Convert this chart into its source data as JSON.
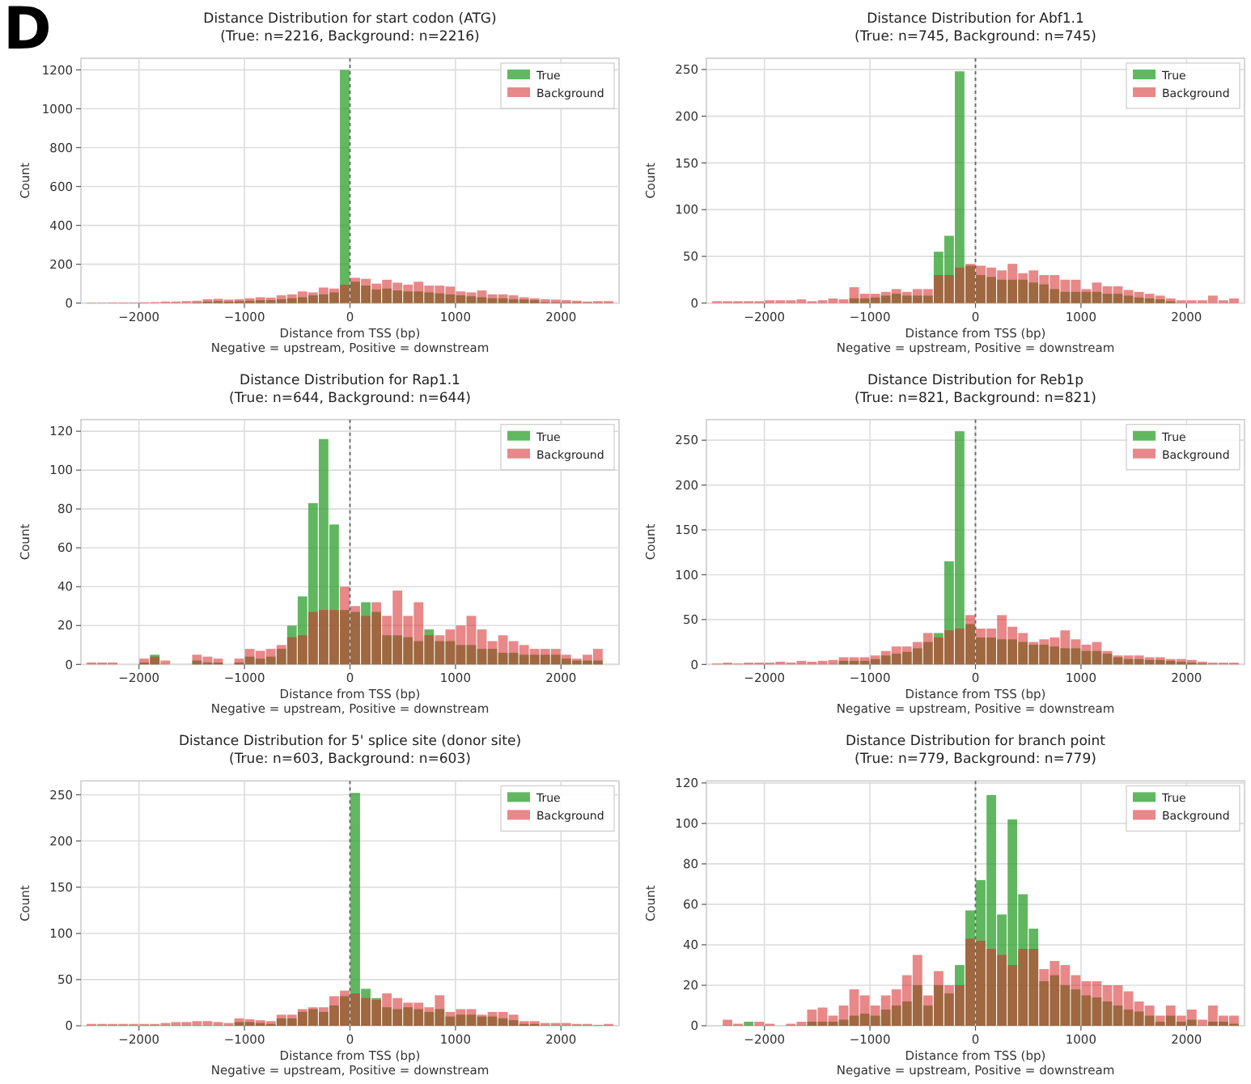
{
  "chart_data": [
    {
      "type": "histogram",
      "title": "Distance Distribution for start codon (ATG)",
      "subtitle": "(True: n=2216, Background: n=2216)",
      "xlabel": "Distance from TSS (bp)\nNegative = upstream, Positive = downstream",
      "ylabel": "Count",
      "annotations": [
        "D"
      ],
      "bins": [
        -2500,
        -2400,
        -2300,
        -2200,
        -2100,
        -2000,
        -1900,
        -1800,
        -1700,
        -1600,
        -1500,
        -1400,
        -1300,
        -1200,
        -1100,
        -1000,
        -900,
        -800,
        -700,
        -600,
        -500,
        -400,
        -300,
        -200,
        -100,
        0,
        100,
        200,
        300,
        400,
        500,
        600,
        700,
        800,
        900,
        1000,
        1100,
        1200,
        1300,
        1400,
        1500,
        1600,
        1700,
        1800,
        1900,
        2000,
        2100,
        2200,
        2300,
        2400,
        2500
      ],
      "series": [
        {
          "name": "True",
          "color": "#2ca02c",
          "values": [
            0,
            0,
            0,
            0,
            0,
            0,
            0,
            0,
            0,
            0,
            2,
            8,
            10,
            8,
            10,
            12,
            15,
            15,
            20,
            25,
            30,
            40,
            45,
            55,
            1200,
            110,
            90,
            70,
            75,
            65,
            60,
            60,
            55,
            50,
            45,
            40,
            35,
            30,
            25,
            25,
            20,
            18,
            15,
            4,
            3,
            2,
            2,
            1,
            1,
            1
          ]
        },
        {
          "name": "Background",
          "color": "#d62728",
          "values": [
            2,
            2,
            3,
            3,
            3,
            4,
            5,
            8,
            8,
            10,
            12,
            20,
            22,
            18,
            20,
            25,
            30,
            28,
            40,
            45,
            60,
            55,
            80,
            75,
            95,
            130,
            125,
            100,
            120,
            105,
            95,
            110,
            90,
            90,
            85,
            60,
            55,
            65,
            45,
            45,
            40,
            30,
            25,
            20,
            18,
            15,
            12,
            8,
            10,
            10
          ]
        }
      ],
      "xlim": [
        -2550,
        2550
      ],
      "xticks": [
        -2000,
        -1000,
        0,
        1000,
        2000
      ],
      "ylim": [
        0,
        1260
      ],
      "yticks": [
        0,
        200,
        400,
        600,
        800,
        1000,
        1200
      ],
      "grid": true,
      "legend": "top right",
      "ref_lines": [
        {
          "axis": "x",
          "value": 0,
          "color": "#666666",
          "line_style": "dotted"
        }
      ]
    },
    {
      "type": "histogram",
      "title": "Distance Distribution for Abf1.1",
      "subtitle": "(True: n=745, Background: n=745)",
      "xlabel": "Distance from TSS (bp)\nNegative = upstream, Positive = downstream",
      "ylabel": "Count",
      "bins": [
        -2500,
        -2400,
        -2300,
        -2200,
        -2100,
        -2000,
        -1900,
        -1800,
        -1700,
        -1600,
        -1500,
        -1400,
        -1300,
        -1200,
        -1100,
        -1000,
        -900,
        -800,
        -700,
        -600,
        -500,
        -400,
        -300,
        -200,
        -100,
        0,
        100,
        200,
        300,
        400,
        500,
        600,
        700,
        800,
        900,
        1000,
        1100,
        1200,
        1300,
        1400,
        1500,
        1600,
        1700,
        1800,
        1900,
        2000,
        2100,
        2200,
        2300,
        2400,
        2500
      ],
      "series": [
        {
          "name": "True",
          "color": "#2ca02c",
          "values": [
            0,
            0,
            0,
            0,
            0,
            0,
            0,
            0,
            0,
            0,
            0,
            0,
            0,
            5,
            5,
            6,
            8,
            10,
            8,
            8,
            8,
            55,
            72,
            248,
            40,
            30,
            28,
            25,
            25,
            25,
            22,
            20,
            15,
            12,
            12,
            12,
            12,
            10,
            10,
            8,
            6,
            5,
            4,
            2,
            0,
            0,
            0,
            0,
            0,
            0
          ]
        },
        {
          "name": "Background",
          "color": "#d62728",
          "values": [
            2,
            2,
            2,
            2,
            2,
            3,
            3,
            3,
            4,
            2,
            3,
            5,
            4,
            17,
            10,
            10,
            12,
            15,
            12,
            15,
            15,
            30,
            30,
            38,
            42,
            40,
            38,
            35,
            42,
            32,
            35,
            30,
            30,
            25,
            25,
            15,
            22,
            18,
            18,
            14,
            12,
            10,
            8,
            5,
            3,
            3,
            3,
            8,
            3,
            5
          ]
        }
      ],
      "xlim": [
        -2550,
        2550
      ],
      "xticks": [
        -2000,
        -1000,
        0,
        1000,
        2000
      ],
      "ylim": [
        0,
        262
      ],
      "yticks": [
        0,
        50,
        100,
        150,
        200,
        250
      ],
      "grid": true,
      "legend": "top right",
      "ref_lines": [
        {
          "axis": "x",
          "value": 0,
          "color": "#666666",
          "line_style": "dotted"
        }
      ]
    },
    {
      "type": "histogram",
      "title": "Distance Distribution for Rap1.1",
      "subtitle": "(True: n=644, Background: n=644)",
      "xlabel": "Distance from TSS (bp)\nNegative = upstream, Positive = downstream",
      "ylabel": "Count",
      "bins": [
        -2500,
        -2400,
        -2300,
        -2200,
        -2100,
        -2000,
        -1900,
        -1800,
        -1700,
        -1600,
        -1500,
        -1400,
        -1300,
        -1200,
        -1100,
        -1000,
        -900,
        -800,
        -700,
        -600,
        -500,
        -400,
        -300,
        -200,
        -100,
        0,
        100,
        200,
        300,
        400,
        500,
        600,
        700,
        800,
        900,
        1000,
        1100,
        1200,
        1300,
        1400,
        1500,
        1600,
        1700,
        1800,
        1900,
        2000,
        2100,
        2200,
        2300,
        2400,
        2500
      ],
      "series": [
        {
          "name": "True",
          "color": "#2ca02c",
          "values": [
            0,
            0,
            0,
            0,
            0,
            1,
            5,
            0,
            0,
            0,
            2,
            1,
            1,
            0,
            1,
            4,
            3,
            4,
            8,
            20,
            35,
            83,
            116,
            72,
            28,
            27,
            32,
            27,
            15,
            15,
            14,
            12,
            18,
            12,
            12,
            10,
            10,
            8,
            8,
            6,
            6,
            5,
            5,
            5,
            5,
            3,
            2,
            2,
            2,
            0
          ]
        },
        {
          "name": "Background",
          "color": "#d62728",
          "values": [
            1,
            1,
            1,
            0,
            0,
            3,
            4,
            2,
            0,
            0,
            5,
            4,
            3,
            0,
            3,
            8,
            7,
            8,
            10,
            14,
            15,
            27,
            28,
            28,
            40,
            30,
            25,
            32,
            25,
            38,
            25,
            32,
            15,
            15,
            18,
            20,
            25,
            18,
            12,
            15,
            12,
            10,
            8,
            8,
            8,
            5,
            3,
            5,
            8,
            0
          ]
        }
      ],
      "xlim": [
        -2550,
        2550
      ],
      "xticks": [
        -2000,
        -1000,
        0,
        1000,
        2000
      ],
      "ylim": [
        0,
        126
      ],
      "yticks": [
        0,
        20,
        40,
        60,
        80,
        100,
        120
      ],
      "grid": true,
      "legend": "top right",
      "ref_lines": [
        {
          "axis": "x",
          "value": 0,
          "color": "#666666",
          "line_style": "dotted"
        }
      ]
    },
    {
      "type": "histogram",
      "title": "Distance Distribution for Reb1p",
      "subtitle": "(True: n=821, Background: n=821)",
      "xlabel": "Distance from TSS (bp)\nNegative = upstream, Positive = downstream",
      "ylabel": "Count",
      "bins": [
        -2500,
        -2400,
        -2300,
        -2200,
        -2100,
        -2000,
        -1900,
        -1800,
        -1700,
        -1600,
        -1500,
        -1400,
        -1300,
        -1200,
        -1100,
        -1000,
        -900,
        -800,
        -700,
        -600,
        -500,
        -400,
        -300,
        -200,
        -100,
        0,
        100,
        200,
        300,
        400,
        500,
        600,
        700,
        800,
        900,
        1000,
        1100,
        1200,
        1300,
        1400,
        1500,
        1600,
        1700,
        1800,
        1900,
        2000,
        2100,
        2200,
        2300,
        2400,
        2500
      ],
      "series": [
        {
          "name": "True",
          "color": "#2ca02c",
          "values": [
            0,
            0,
            0,
            0,
            0,
            0,
            0,
            0,
            0,
            0,
            0,
            0,
            4,
            4,
            4,
            6,
            10,
            12,
            14,
            18,
            25,
            35,
            115,
            260,
            45,
            30,
            30,
            28,
            28,
            25,
            22,
            22,
            20,
            18,
            18,
            15,
            15,
            12,
            8,
            6,
            6,
            5,
            5,
            4,
            3,
            2,
            1,
            0,
            0,
            0
          ]
        },
        {
          "name": "Background",
          "color": "#d62728",
          "values": [
            1,
            2,
            1,
            2,
            2,
            2,
            3,
            2,
            4,
            3,
            4,
            5,
            8,
            8,
            8,
            10,
            15,
            20,
            20,
            25,
            35,
            30,
            38,
            40,
            55,
            40,
            40,
            55,
            42,
            35,
            25,
            28,
            30,
            38,
            28,
            22,
            25,
            15,
            10,
            10,
            10,
            8,
            8,
            6,
            6,
            5,
            3,
            2,
            2,
            2
          ]
        }
      ],
      "xlim": [
        -2550,
        2550
      ],
      "xticks": [
        -2000,
        -1000,
        0,
        1000,
        2000
      ],
      "ylim": [
        0,
        273
      ],
      "yticks": [
        0,
        50,
        100,
        150,
        200,
        250
      ],
      "grid": true,
      "legend": "top right",
      "ref_lines": [
        {
          "axis": "x",
          "value": 0,
          "color": "#666666",
          "line_style": "dotted"
        }
      ]
    },
    {
      "type": "histogram",
      "title": "Distance Distribution for 5' splice site (donor site)",
      "subtitle": "(True: n=603, Background: n=603)",
      "xlabel": "Distance from TSS (bp)\nNegative = upstream, Positive = downstream",
      "ylabel": "Count",
      "bins": [
        -2500,
        -2400,
        -2300,
        -2200,
        -2100,
        -2000,
        -1900,
        -1800,
        -1700,
        -1600,
        -1500,
        -1400,
        -1300,
        -1200,
        -1100,
        -1000,
        -900,
        -800,
        -700,
        -600,
        -500,
        -400,
        -300,
        -200,
        -100,
        0,
        100,
        200,
        300,
        400,
        500,
        600,
        700,
        800,
        900,
        1000,
        1100,
        1200,
        1300,
        1400,
        1500,
        1600,
        1700,
        1800,
        1900,
        2000,
        2100,
        2200,
        2300,
        2400,
        2500
      ],
      "series": [
        {
          "name": "True",
          "color": "#2ca02c",
          "values": [
            0,
            0,
            0,
            0,
            0,
            0,
            0,
            0,
            0,
            0,
            0,
            0,
            0,
            0,
            4,
            4,
            3,
            2,
            8,
            8,
            15,
            18,
            15,
            22,
            32,
            252,
            40,
            30,
            20,
            18,
            20,
            18,
            15,
            18,
            10,
            12,
            12,
            10,
            10,
            8,
            6,
            2,
            2,
            0,
            0,
            0,
            0,
            0,
            0,
            0
          ]
        },
        {
          "name": "Background",
          "color": "#d62728",
          "values": [
            2,
            2,
            2,
            2,
            2,
            2,
            2,
            3,
            4,
            4,
            5,
            5,
            4,
            3,
            8,
            7,
            6,
            5,
            12,
            12,
            18,
            20,
            20,
            32,
            38,
            35,
            30,
            28,
            35,
            30,
            25,
            25,
            20,
            33,
            15,
            18,
            18,
            12,
            15,
            15,
            12,
            5,
            5,
            3,
            3,
            3,
            2,
            2,
            1,
            2
          ]
        }
      ],
      "xlim": [
        -2550,
        2550
      ],
      "xticks": [
        -2000,
        -1000,
        0,
        1000,
        2000
      ],
      "ylim": [
        0,
        265
      ],
      "yticks": [
        0,
        50,
        100,
        150,
        200,
        250
      ],
      "grid": true,
      "legend": "top right",
      "ref_lines": [
        {
          "axis": "x",
          "value": 0,
          "color": "#666666",
          "line_style": "dotted"
        }
      ]
    },
    {
      "type": "histogram",
      "title": "Distance Distribution for branch point",
      "subtitle": "(True: n=779, Background: n=779)",
      "xlabel": "Distance from TSS (bp)\nNegative = upstream, Positive = downstream",
      "ylabel": "Count",
      "bins": [
        -2500,
        -2400,
        -2300,
        -2200,
        -2100,
        -2000,
        -1900,
        -1800,
        -1700,
        -1600,
        -1500,
        -1400,
        -1300,
        -1200,
        -1100,
        -1000,
        -900,
        -800,
        -700,
        -600,
        -500,
        -400,
        -300,
        -200,
        -100,
        0,
        100,
        200,
        300,
        400,
        500,
        600,
        700,
        800,
        900,
        1000,
        1100,
        1200,
        1300,
        1400,
        1500,
        1600,
        1700,
        1800,
        1900,
        2000,
        2100,
        2200,
        2300,
        2400,
        2500
      ],
      "series": [
        {
          "name": "True",
          "color": "#2ca02c",
          "values": [
            0,
            0,
            0,
            2,
            0,
            0,
            0,
            0,
            0,
            2,
            2,
            2,
            3,
            5,
            6,
            5,
            8,
            10,
            12,
            20,
            10,
            20,
            16,
            30,
            57,
            72,
            114,
            55,
            102,
            65,
            48,
            22,
            25,
            20,
            18,
            15,
            14,
            12,
            10,
            8,
            7,
            5,
            2,
            5,
            2,
            3,
            0,
            2,
            2,
            1
          ]
        },
        {
          "name": "Background",
          "color": "#d62728",
          "values": [
            0,
            3,
            1,
            0,
            2,
            1,
            0,
            1,
            2,
            8,
            9,
            5,
            10,
            18,
            15,
            10,
            15,
            18,
            25,
            35,
            15,
            27,
            20,
            20,
            43,
            42,
            38,
            35,
            30,
            38,
            38,
            28,
            32,
            30,
            25,
            22,
            22,
            20,
            20,
            17,
            12,
            10,
            5,
            10,
            5,
            8,
            3,
            10,
            5,
            5
          ]
        }
      ],
      "xlim": [
        -2550,
        2550
      ],
      "xticks": [
        -2000,
        -1000,
        0,
        1000,
        2000
      ],
      "ylim": [
        0,
        121
      ],
      "yticks": [
        0,
        20,
        40,
        60,
        80,
        100,
        120
      ],
      "grid": true,
      "legend": "top right",
      "ref_lines": [
        {
          "axis": "x",
          "value": 0,
          "color": "#666666",
          "line_style": "dotted"
        }
      ]
    }
  ]
}
